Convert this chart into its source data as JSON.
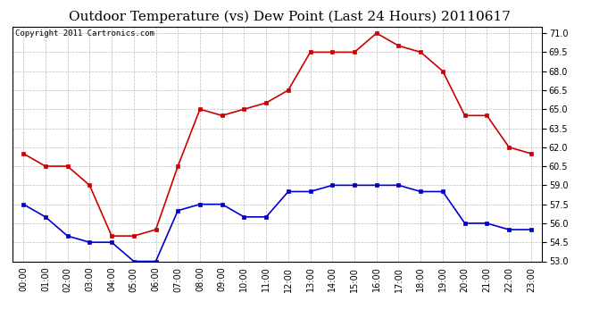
{
  "title": "Outdoor Temperature (vs) Dew Point (Last 24 Hours) 20110617",
  "copyright": "Copyright 2011 Cartronics.com",
  "x_labels": [
    "00:00",
    "01:00",
    "02:00",
    "03:00",
    "04:00",
    "05:00",
    "06:00",
    "07:00",
    "08:00",
    "09:00",
    "10:00",
    "11:00",
    "12:00",
    "13:00",
    "14:00",
    "15:00",
    "16:00",
    "17:00",
    "18:00",
    "19:00",
    "20:00",
    "21:00",
    "22:00",
    "23:00"
  ],
  "temp_data": [
    61.5,
    60.5,
    60.5,
    59.0,
    55.0,
    55.0,
    55.5,
    60.5,
    65.0,
    64.5,
    65.0,
    65.5,
    66.5,
    69.5,
    69.5,
    69.5,
    71.0,
    70.0,
    69.5,
    68.0,
    64.5,
    64.5,
    62.0,
    61.5
  ],
  "dew_data": [
    57.5,
    56.5,
    55.0,
    54.5,
    54.5,
    53.0,
    53.0,
    57.0,
    57.5,
    57.5,
    56.5,
    56.5,
    58.5,
    58.5,
    59.0,
    59.0,
    59.0,
    59.0,
    58.5,
    58.5,
    56.0,
    56.0,
    55.5,
    55.5
  ],
  "temp_color": "#cc0000",
  "dew_color": "#0000cc",
  "ylim": [
    53.0,
    71.5
  ],
  "yticks": [
    53.0,
    54.5,
    56.0,
    57.5,
    59.0,
    60.5,
    62.0,
    63.5,
    65.0,
    66.5,
    68.0,
    69.5,
    71.0
  ],
  "background_color": "#ffffff",
  "plot_bg_color": "#ffffff",
  "grid_color": "#bbbbbb",
  "title_fontsize": 11,
  "copyright_fontsize": 6.5,
  "tick_fontsize": 7,
  "marker": "s",
  "markersize": 3
}
